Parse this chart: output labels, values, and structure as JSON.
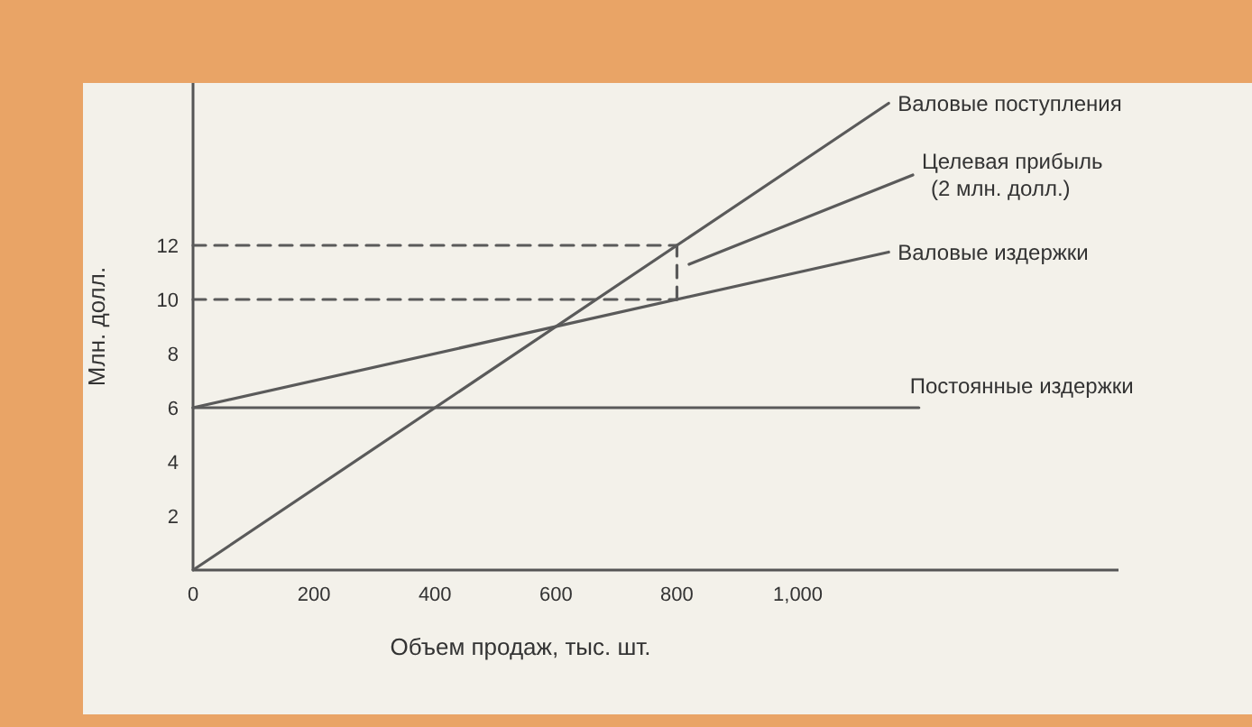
{
  "chart_data": {
    "type": "line",
    "xlabel": "Объем продаж, тыс. шт.",
    "ylabel": "Млн. долл.",
    "xlim": [
      0,
      1530
    ],
    "ylim": [
      0,
      18
    ],
    "xticks": [
      0,
      200,
      400,
      600,
      800,
      {
        "value": 1000,
        "label": "1,000"
      }
    ],
    "yticks": [
      2,
      4,
      6,
      8,
      10,
      12
    ],
    "grid": false,
    "marker": "none",
    "series": [
      {
        "name": "Валовые поступления",
        "color": "#5a5a5a",
        "x": [
          0,
          1150
        ],
        "values": [
          0,
          17.25
        ]
      },
      {
        "name": "Целевая прибыль\n(2 млн. долл.)",
        "color": "#5a5a5a",
        "x": [
          820,
          1190
        ],
        "values": [
          11.3,
          14.6
        ]
      },
      {
        "name": "Валовые издержки",
        "color": "#5a5a5a",
        "x": [
          0,
          1150
        ],
        "values": [
          6,
          11.75
        ]
      },
      {
        "name": "Постоянные издержки",
        "color": "#5a5a5a",
        "x": [
          0,
          1200
        ],
        "values": [
          6,
          6
        ]
      },
      {
        "color": "#5a5a5a",
        "line_style": "dashed",
        "x": [
          0,
          800
        ],
        "values": [
          12,
          12
        ]
      },
      {
        "color": "#5a5a5a",
        "line_style": "dashed",
        "x": [
          0,
          800
        ],
        "values": [
          10,
          10
        ]
      },
      {
        "color": "#5a5a5a",
        "line_style": "dashed",
        "x": [
          800,
          800
        ],
        "values": [
          10,
          12
        ]
      }
    ]
  }
}
